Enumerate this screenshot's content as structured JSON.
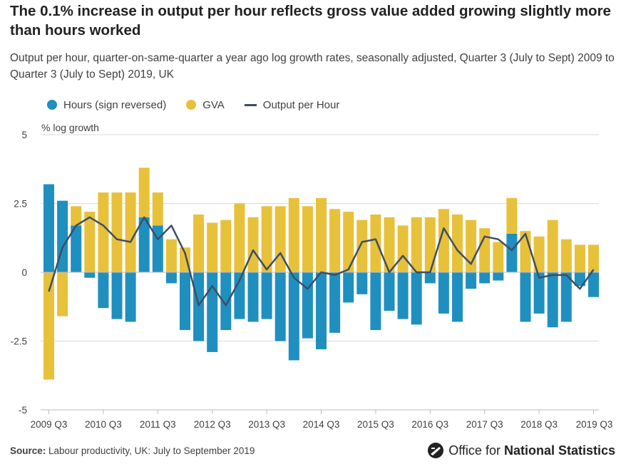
{
  "header": {
    "title": "The 0.1% increase in output per hour reflects gross value added growing slightly more than hours worked",
    "subtitle": "Output per hour, quarter-on-same-quarter a year ago log growth rates, seasonally adjusted, Quarter 3 (July to Sept) 2009 to Quarter 3 (July to Sept) 2019, UK"
  },
  "legend": {
    "hours": "Hours (sign reversed)",
    "gva": "GVA",
    "oph": "Output per Hour"
  },
  "colors": {
    "hours": "#206095",
    "hours_bar": "#1f8fbf",
    "gva": "#e8c13a",
    "oph": "#3d4e63",
    "grid": "#d9d9d9",
    "axis": "#bebebe"
  },
  "footer": {
    "source_label": "Source:",
    "source_text": "Labour productivity, UK: July to September 2019",
    "brand_light": "Office for",
    "brand_bold": "National Statistics"
  },
  "chart_data": {
    "type": "bar",
    "stacked": true,
    "ylabel": "% log growth",
    "ylim": [
      -5,
      5
    ],
    "yticks": [
      5,
      2.5,
      0,
      -2.5,
      -5
    ],
    "ytick_labels": [
      "5",
      "2.5",
      "0",
      "-2.5",
      "-5"
    ],
    "xtick_labels": [
      "2009 Q3",
      "2010 Q3",
      "2011 Q3",
      "2012 Q3",
      "2013 Q3",
      "2014 Q3",
      "2015 Q3",
      "2016 Q3",
      "2017 Q3",
      "2018 Q3",
      "2019 Q3"
    ],
    "xtick_every": 4,
    "categories": [
      "2009 Q3",
      "2009 Q4",
      "2010 Q1",
      "2010 Q2",
      "2010 Q3",
      "2010 Q4",
      "2011 Q1",
      "2011 Q2",
      "2011 Q3",
      "2011 Q4",
      "2012 Q1",
      "2012 Q2",
      "2012 Q3",
      "2012 Q4",
      "2013 Q1",
      "2013 Q2",
      "2013 Q3",
      "2013 Q4",
      "2014 Q1",
      "2014 Q2",
      "2014 Q3",
      "2014 Q4",
      "2015 Q1",
      "2015 Q2",
      "2015 Q3",
      "2015 Q4",
      "2016 Q1",
      "2016 Q2",
      "2016 Q3",
      "2016 Q4",
      "2017 Q1",
      "2017 Q2",
      "2017 Q3",
      "2017 Q4",
      "2018 Q1",
      "2018 Q2",
      "2018 Q3",
      "2018 Q4",
      "2019 Q1",
      "2019 Q2",
      "2019 Q3"
    ],
    "series": [
      {
        "name": "Hours (sign reversed)",
        "kind": "bar",
        "values": [
          3.2,
          2.6,
          1.7,
          -0.2,
          -1.3,
          -1.7,
          -1.8,
          2.0,
          1.7,
          -0.4,
          -2.1,
          -2.5,
          -2.9,
          -2.1,
          -1.7,
          -1.8,
          -1.7,
          -2.5,
          -3.2,
          -2.4,
          -2.8,
          -2.2,
          -1.1,
          -0.8,
          -2.1,
          -1.4,
          -1.7,
          -1.9,
          -0.4,
          -1.5,
          -1.8,
          -0.6,
          -0.4,
          -0.3,
          1.4,
          -1.8,
          -1.5,
          -2.0,
          -1.8,
          -0.5,
          -0.9
        ]
      },
      {
        "name": "GVA",
        "kind": "bar",
        "values": [
          -3.9,
          -1.6,
          0.7,
          2.2,
          2.9,
          2.9,
          2.9,
          1.8,
          1.2,
          1.2,
          0.9,
          2.1,
          1.8,
          1.9,
          2.5,
          2.0,
          2.4,
          2.4,
          2.7,
          2.4,
          2.7,
          2.3,
          2.2,
          1.9,
          2.1,
          2.0,
          1.7,
          2.0,
          2.0,
          2.3,
          2.1,
          1.9,
          1.6,
          1.1,
          1.3,
          1.5,
          1.3,
          1.9,
          1.2,
          1.0,
          1.0
        ]
      },
      {
        "name": "Output per Hour",
        "kind": "line",
        "values": [
          -0.7,
          0.9,
          1.7,
          2.0,
          1.7,
          1.2,
          1.1,
          2.0,
          1.2,
          1.7,
          0.7,
          -1.2,
          -0.5,
          -1.2,
          -0.3,
          0.8,
          0.1,
          0.7,
          -0.2,
          -0.6,
          0.0,
          -0.1,
          0.1,
          1.1,
          1.2,
          0.0,
          0.6,
          0.0,
          0.0,
          1.6,
          0.8,
          0.3,
          1.3,
          1.2,
          0.8,
          1.4,
          -0.2,
          -0.1,
          -0.1,
          -0.6,
          0.1
        ]
      }
    ]
  }
}
